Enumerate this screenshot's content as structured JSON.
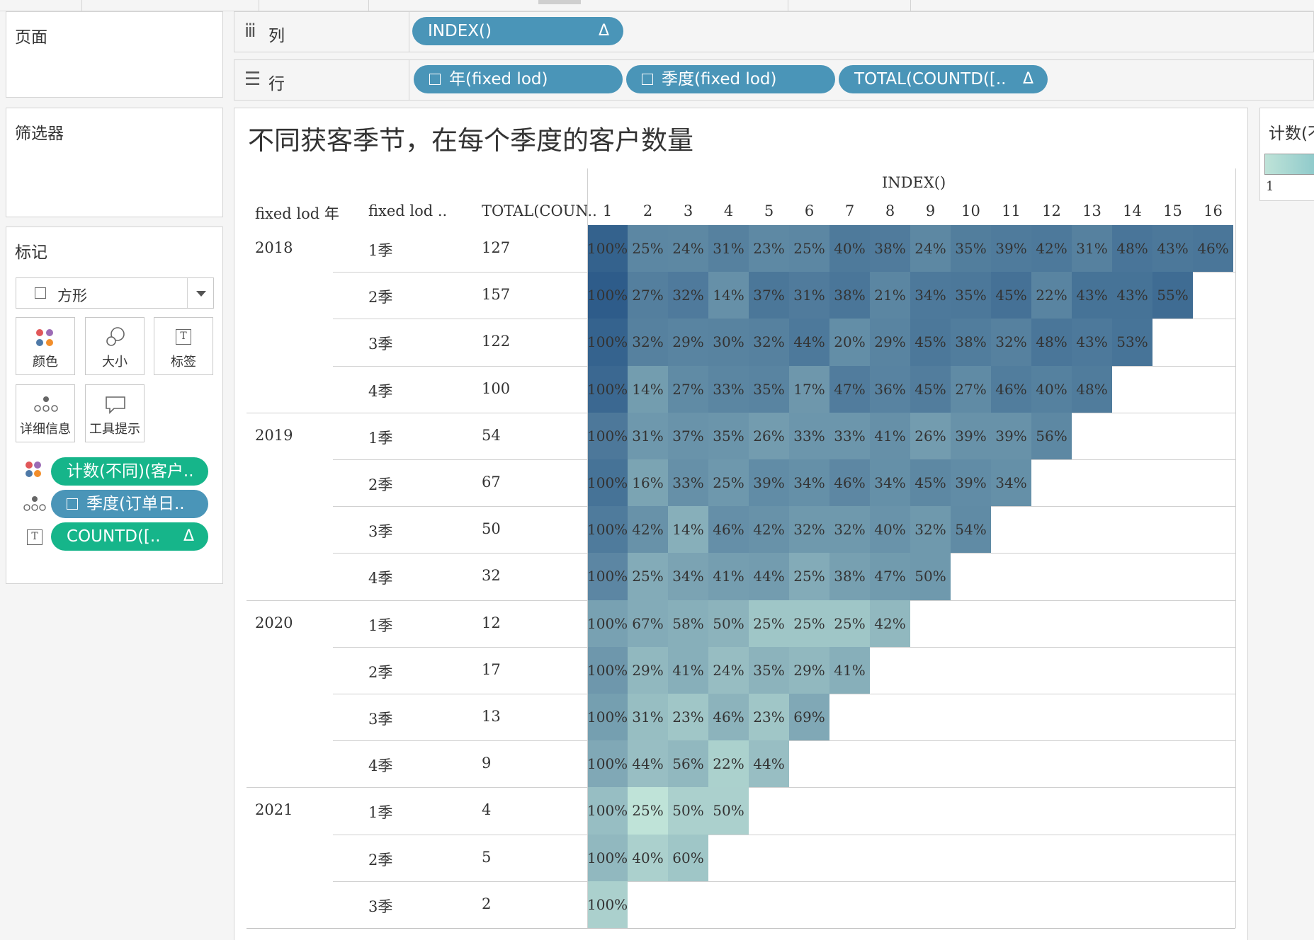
{
  "shelves": {
    "pages_label": "页面",
    "filters_label": "筛选器",
    "marks_label": "标记",
    "columns": {
      "label": "列",
      "pills": [
        {
          "text": "INDEX()",
          "delta": "Δ"
        }
      ]
    },
    "rows": {
      "label": "行",
      "pills": [
        {
          "text": "年(fixed lod)",
          "delta": ""
        },
        {
          "text": "季度(fixed lod)",
          "delta": ""
        },
        {
          "text": "TOTAL(COUNTD([..",
          "delta": "Δ"
        }
      ]
    }
  },
  "marks": {
    "type": "方形",
    "buttons": {
      "color": "颜色",
      "size": "大小",
      "label": "标签",
      "detail": "详细信息",
      "tooltip": "工具提示"
    },
    "pills": [
      {
        "text": "计数(不同)(客户..",
        "delta": ""
      },
      {
        "text": "季度(订单日..",
        "delta": ""
      },
      {
        "text": "COUNTD([..",
        "delta": "Δ"
      }
    ]
  },
  "legend": {
    "title": "计数(不",
    "min_label": "1"
  },
  "view": {
    "title": "不同获客季节，在每个季度的客户数量",
    "headers": {
      "year": "fixed lod 年",
      "quarter": "fixed lod ..",
      "total": "TOTAL(COUN..",
      "index_title": "INDEX()",
      "index_values": [
        "1",
        "2",
        "3",
        "4",
        "5",
        "6",
        "7",
        "8",
        "9",
        "10",
        "11",
        "12",
        "13",
        "14",
        "15",
        "16"
      ]
    },
    "colors": {
      "light": "#bfe3d8",
      "dark": "#2e5c8a"
    },
    "groups": [
      {
        "year": "2018",
        "rows": [
          {
            "quarter": "1季",
            "total": "127",
            "cells": [
              "100%",
              "25%",
              "24%",
              "31%",
              "23%",
              "25%",
              "40%",
              "38%",
              "24%",
              "35%",
              "39%",
              "42%",
              "31%",
              "48%",
              "43%",
              "46%"
            ]
          },
          {
            "quarter": "2季",
            "total": "157",
            "cells": [
              "100%",
              "27%",
              "32%",
              "14%",
              "37%",
              "31%",
              "38%",
              "21%",
              "34%",
              "35%",
              "45%",
              "22%",
              "43%",
              "43%",
              "55%"
            ]
          },
          {
            "quarter": "3季",
            "total": "122",
            "cells": [
              "100%",
              "32%",
              "29%",
              "30%",
              "32%",
              "44%",
              "20%",
              "29%",
              "45%",
              "38%",
              "32%",
              "48%",
              "43%",
              "53%"
            ]
          },
          {
            "quarter": "4季",
            "total": "100",
            "cells": [
              "100%",
              "14%",
              "27%",
              "33%",
              "35%",
              "17%",
              "47%",
              "36%",
              "45%",
              "27%",
              "46%",
              "40%",
              "48%"
            ]
          }
        ]
      },
      {
        "year": "2019",
        "rows": [
          {
            "quarter": "1季",
            "total": "54",
            "cells": [
              "100%",
              "31%",
              "37%",
              "35%",
              "26%",
              "33%",
              "33%",
              "41%",
              "26%",
              "39%",
              "39%",
              "56%"
            ]
          },
          {
            "quarter": "2季",
            "total": "67",
            "cells": [
              "100%",
              "16%",
              "33%",
              "25%",
              "39%",
              "34%",
              "46%",
              "34%",
              "45%",
              "39%",
              "34%"
            ]
          },
          {
            "quarter": "3季",
            "total": "50",
            "cells": [
              "100%",
              "42%",
              "14%",
              "46%",
              "42%",
              "32%",
              "32%",
              "40%",
              "32%",
              "54%"
            ]
          },
          {
            "quarter": "4季",
            "total": "32",
            "cells": [
              "100%",
              "25%",
              "34%",
              "41%",
              "44%",
              "25%",
              "38%",
              "47%",
              "50%"
            ]
          }
        ]
      },
      {
        "year": "2020",
        "rows": [
          {
            "quarter": "1季",
            "total": "12",
            "cells": [
              "100%",
              "67%",
              "58%",
              "50%",
              "25%",
              "25%",
              "25%",
              "42%"
            ]
          },
          {
            "quarter": "2季",
            "total": "17",
            "cells": [
              "100%",
              "29%",
              "41%",
              "24%",
              "35%",
              "29%",
              "41%"
            ]
          },
          {
            "quarter": "3季",
            "total": "13",
            "cells": [
              "100%",
              "31%",
              "23%",
              "46%",
              "23%",
              "69%"
            ]
          },
          {
            "quarter": "4季",
            "total": "9",
            "cells": [
              "100%",
              "44%",
              "56%",
              "22%",
              "44%"
            ]
          }
        ]
      },
      {
        "year": "2021",
        "rows": [
          {
            "quarter": "1季",
            "total": "4",
            "cells": [
              "100%",
              "25%",
              "50%",
              "50%"
            ]
          },
          {
            "quarter": "2季",
            "total": "5",
            "cells": [
              "100%",
              "40%",
              "60%"
            ]
          },
          {
            "quarter": "3季",
            "total": "2",
            "cells": [
              "100%"
            ]
          }
        ]
      }
    ]
  }
}
